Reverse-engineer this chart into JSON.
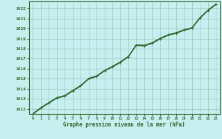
{
  "x": [
    0,
    1,
    2,
    3,
    4,
    5,
    6,
    7,
    8,
    9,
    10,
    11,
    12,
    13,
    14,
    15,
    16,
    17,
    18,
    19,
    20,
    21,
    22,
    23
  ],
  "y_main": [
    1011.5,
    1012.1,
    1012.6,
    1013.1,
    1013.3,
    1013.8,
    1014.3,
    1015.0,
    1015.25,
    1015.8,
    1016.2,
    1016.65,
    1017.2,
    1018.35,
    1018.3,
    1018.55,
    1019.0,
    1019.35,
    1019.55,
    1019.85,
    1020.05,
    1021.05,
    1021.8,
    1022.4
  ],
  "y_high": [
    1011.55,
    1012.15,
    1012.65,
    1013.15,
    1013.35,
    1013.85,
    1014.35,
    1015.05,
    1015.3,
    1015.85,
    1016.25,
    1016.7,
    1017.25,
    1018.4,
    1018.35,
    1018.6,
    1019.05,
    1019.4,
    1019.6,
    1019.9,
    1020.1,
    1021.1,
    1021.85,
    1022.45
  ],
  "y_low": [
    1011.45,
    1012.05,
    1012.55,
    1013.05,
    1013.25,
    1013.75,
    1014.25,
    1014.95,
    1015.2,
    1015.75,
    1016.15,
    1016.6,
    1017.15,
    1018.3,
    1018.25,
    1018.5,
    1018.95,
    1019.3,
    1019.5,
    1019.8,
    1020.0,
    1021.0,
    1021.75,
    1022.35
  ],
  "y_extra": [
    1011.5,
    1012.1,
    1012.6,
    1013.1,
    1013.3,
    1013.8,
    1014.3,
    1015.0,
    1015.27,
    1015.82,
    1016.22,
    1016.67,
    1017.22,
    1018.37,
    1018.32,
    1018.57,
    1019.02,
    1019.37,
    1019.57,
    1019.87,
    1020.07,
    1021.07,
    1021.82,
    1022.42
  ],
  "line_color": "#2d6a2d",
  "bg_color": "#c8eef0",
  "grid_color": "#90c8c0",
  "xlabel": "Graphe pression niveau de la mer (hPa)",
  "ylim": [
    1011.5,
    1022.7
  ],
  "yticks": [
    1012,
    1013,
    1014,
    1015,
    1016,
    1017,
    1018,
    1019,
    1020,
    1021,
    1022
  ],
  "xticks": [
    0,
    1,
    2,
    3,
    4,
    5,
    6,
    7,
    8,
    9,
    10,
    11,
    12,
    13,
    14,
    15,
    16,
    17,
    18,
    19,
    20,
    21,
    22,
    23
  ]
}
